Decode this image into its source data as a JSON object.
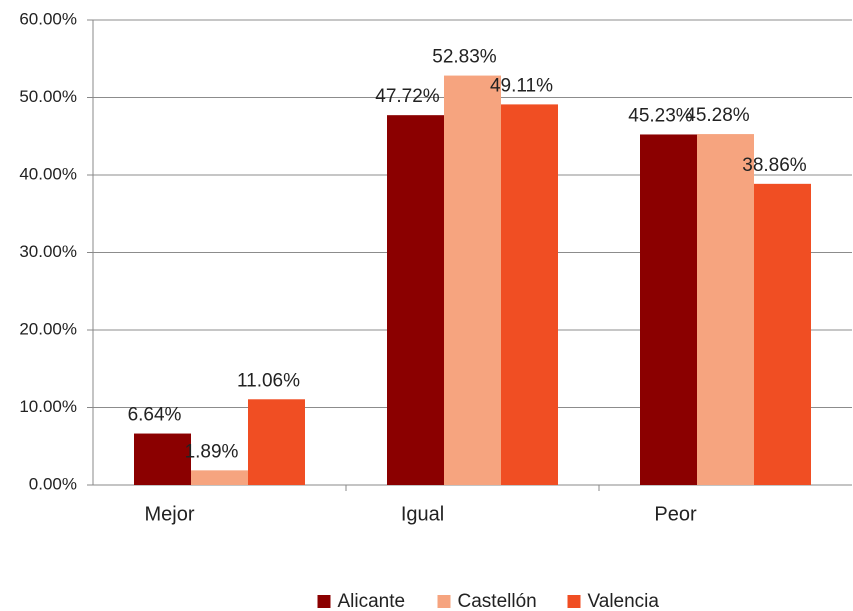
{
  "chart_data": {
    "type": "bar",
    "categories": [
      "Mejor",
      "Igual",
      "Peor"
    ],
    "series": [
      {
        "name": "Alicante",
        "color": "#8b0000",
        "values": [
          6.64,
          47.72,
          45.23
        ],
        "value_labels": [
          "6.64%",
          "47.72%",
          "45.23%"
        ]
      },
      {
        "name": "Castellón",
        "color": "#f6a47f",
        "values": [
          1.89,
          52.83,
          45.28
        ],
        "value_labels": [
          "1.89%",
          "52.83%",
          "45.28%"
        ]
      },
      {
        "name": "Valencia",
        "color": "#f04e23",
        "values": [
          11.06,
          49.11,
          38.86
        ],
        "value_labels": [
          "11.06%",
          "49.11%",
          "38.86%"
        ]
      }
    ],
    "ylim": [
      0,
      60
    ],
    "yticks": [
      {
        "value": 0,
        "label": "0.00%"
      },
      {
        "value": 10,
        "label": "10.00%"
      },
      {
        "value": 20,
        "label": "20.00%"
      },
      {
        "value": 30,
        "label": "30.00%"
      },
      {
        "value": 40,
        "label": "40.00%"
      },
      {
        "value": 50,
        "label": "50.00%"
      },
      {
        "value": 60,
        "label": "60.00%"
      }
    ],
    "grid": true,
    "legend": "bottom"
  }
}
